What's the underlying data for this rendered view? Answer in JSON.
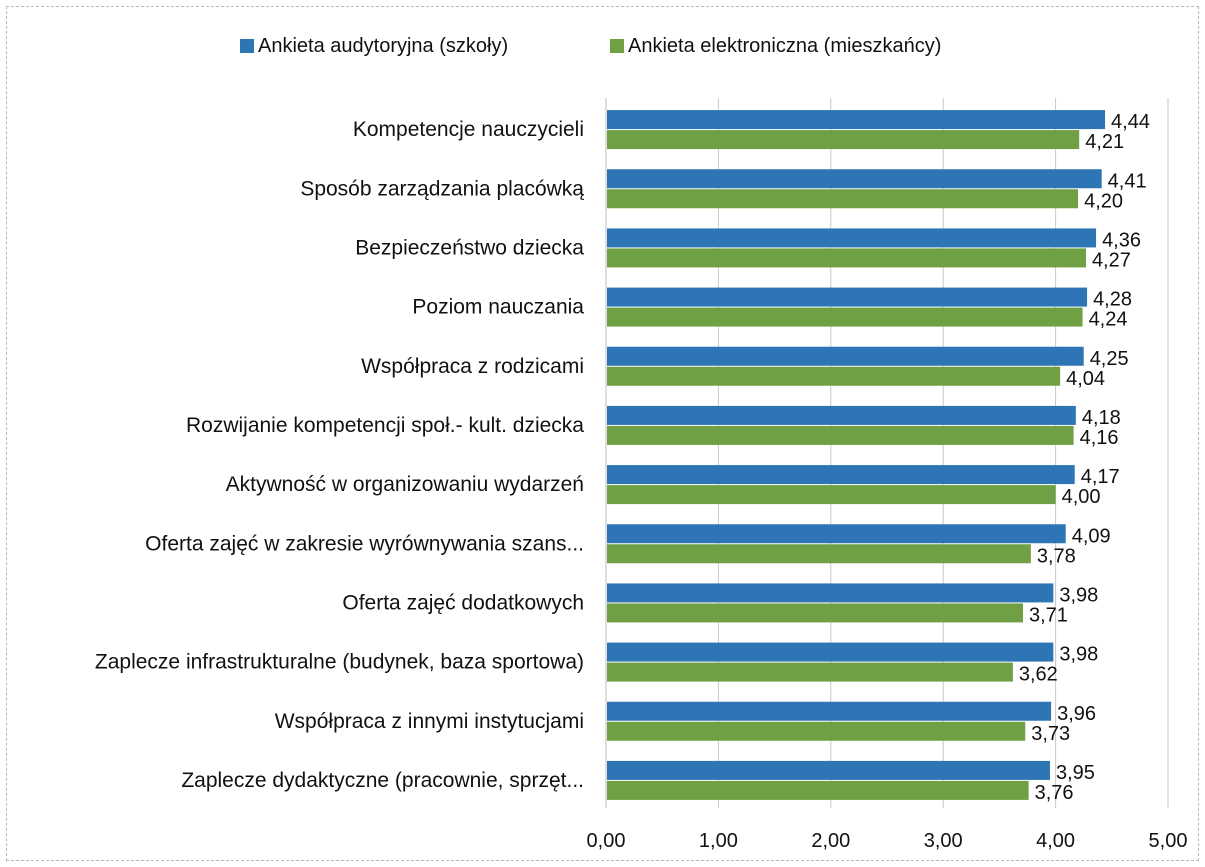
{
  "chart_data": {
    "type": "bar",
    "orientation": "horizontal",
    "legend_position": "top",
    "grid": true,
    "xlim": [
      0,
      5
    ],
    "x_ticks": [
      "0,00",
      "1,00",
      "2,00",
      "3,00",
      "4,00",
      "5,00"
    ],
    "categories": [
      "Kompetencje nauczycieli",
      "Sposób zarządzania placówką",
      "Bezpieczeństwo dziecka",
      "Poziom nauczania",
      "Współpraca z rodzicami",
      "Rozwijanie kompetencji społ.- kult. dziecka",
      "Aktywność w organizowaniu wydarzeń",
      "Oferta zajęć w zakresie wyrównywania szans...",
      "Oferta zajęć dodatkowych",
      "Zaplecze infrastrukturalne (budynek, baza sportowa)",
      "Współpraca z innymi instytucjami",
      "Zaplecze dydaktyczne (pracownie, sprzęt..."
    ],
    "series": [
      {
        "name": "Ankieta audytoryjna (szkoły)",
        "color": "#2e75b6",
        "values": [
          4.44,
          4.41,
          4.36,
          4.28,
          4.25,
          4.18,
          4.17,
          4.09,
          3.98,
          3.98,
          3.96,
          3.95
        ],
        "labels": [
          "4,44",
          "4,41",
          "4,36",
          "4,28",
          "4,25",
          "4,18",
          "4,17",
          "4,09",
          "3,98",
          "3,98",
          "3,96",
          "3,95"
        ]
      },
      {
        "name": "Ankieta elektroniczna (mieszkańcy)",
        "color": "#70a044",
        "values": [
          4.21,
          4.2,
          4.27,
          4.24,
          4.04,
          4.16,
          4.0,
          3.78,
          3.71,
          3.62,
          3.73,
          3.76
        ],
        "labels": [
          "4,21",
          "4,20",
          "4,27",
          "4,24",
          "4,04",
          "4,16",
          "4,00",
          "3,78",
          "3,71",
          "3,62",
          "3,73",
          "3,76"
        ]
      }
    ]
  }
}
